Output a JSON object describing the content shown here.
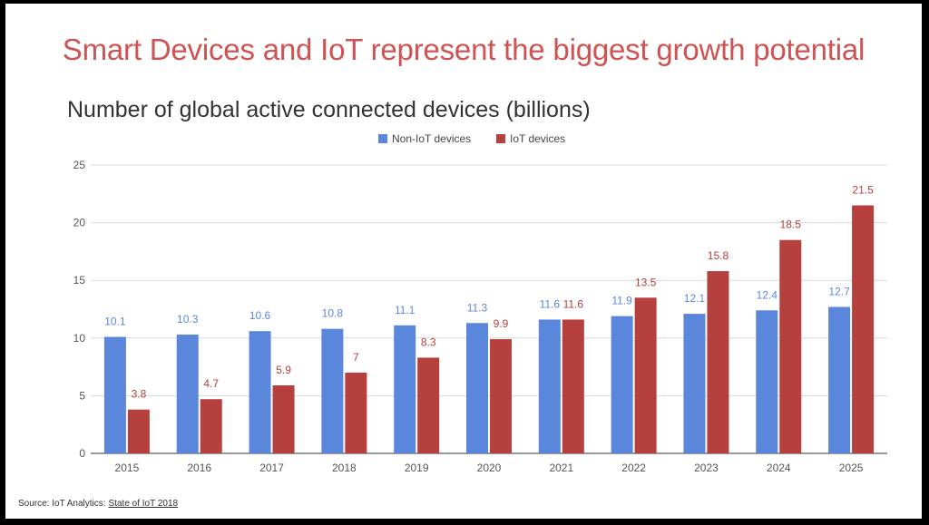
{
  "slide": {
    "headline": "Smart Devices and IoT represent the biggest growth potential",
    "source_label": "Source:  IoT Analytics:",
    "source_link": "State of IoT 2018"
  },
  "colors": {
    "headline": "#cf5353",
    "non_iot": "#5a87dc",
    "iot": "#b5403d",
    "grid": "#d9d9d9"
  },
  "chart_data": {
    "type": "bar",
    "title": "Number of global active connected devices (billions)",
    "xlabel": "",
    "ylabel": "",
    "ylim": [
      0,
      25
    ],
    "yticks": [
      0,
      5,
      10,
      15,
      20,
      25
    ],
    "grid": true,
    "legend_position": "top-center",
    "categories": [
      "2015",
      "2016",
      "2017",
      "2018",
      "2019",
      "2020",
      "2021",
      "2022",
      "2023",
      "2024",
      "2025"
    ],
    "series": [
      {
        "name": "Non-IoT devices",
        "color": "#5a87dc",
        "values": [
          10.1,
          10.3,
          10.6,
          10.8,
          11.1,
          11.3,
          11.6,
          11.9,
          12.1,
          12.4,
          12.7
        ],
        "labels": [
          "10.1",
          "10.3",
          "10.6",
          "10.8",
          "11.1",
          "11.3",
          "11.6",
          "11.9",
          "12.1",
          "12.4",
          "12.7"
        ]
      },
      {
        "name": "IoT devices",
        "color": "#b5403d",
        "values": [
          3.8,
          4.7,
          5.9,
          7,
          8.3,
          9.9,
          11.6,
          13.5,
          15.8,
          18.5,
          21.5
        ],
        "labels": [
          "3.8",
          "4.7",
          "5.9",
          "7",
          "8.3",
          "9.9",
          "11.6",
          "13.5",
          "15.8",
          "18.5",
          "21.5"
        ]
      }
    ]
  }
}
